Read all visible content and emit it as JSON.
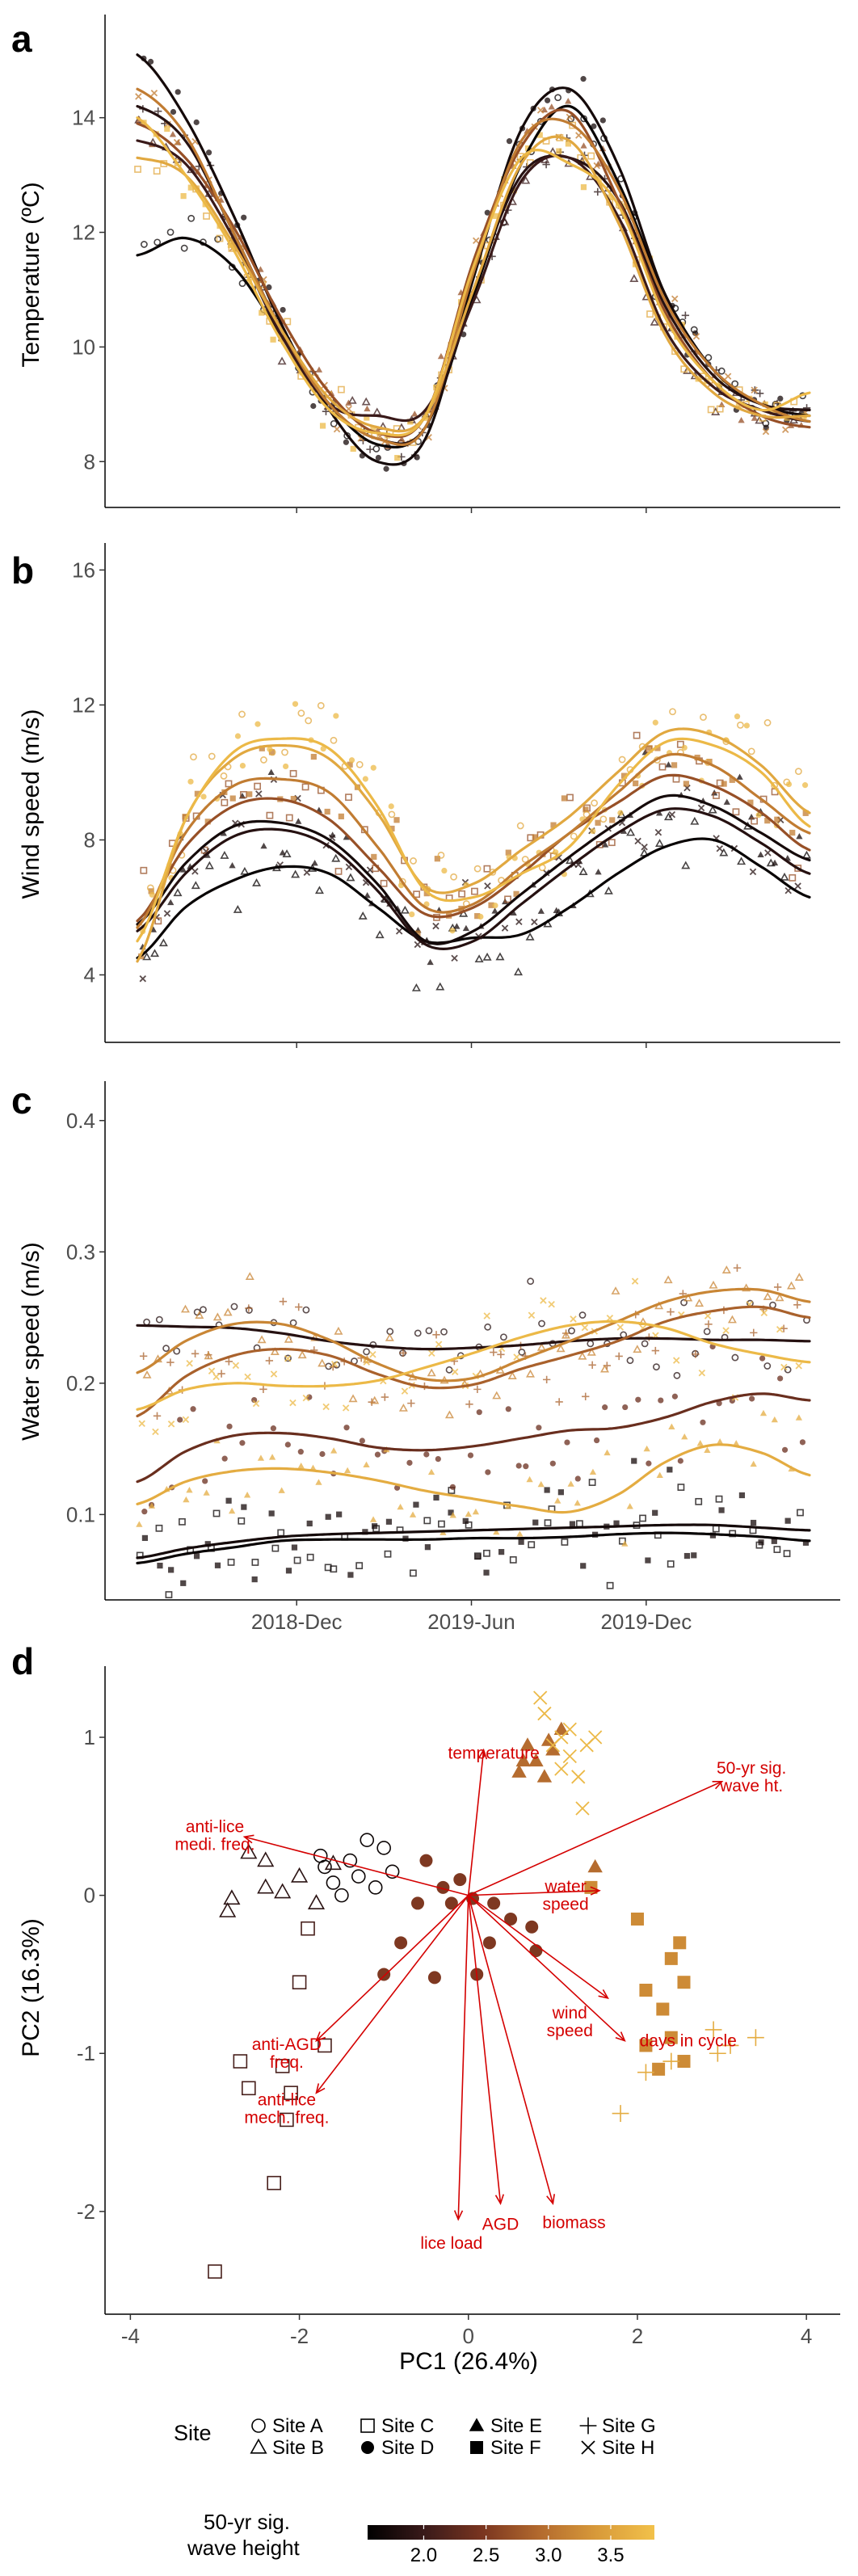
{
  "panel_letters": [
    "a",
    "b",
    "c",
    "d"
  ],
  "legend": {
    "site_title": "Site",
    "sites": [
      {
        "name": "Site A",
        "symbol": "circle-open"
      },
      {
        "name": "Site B",
        "symbol": "triangle-open"
      },
      {
        "name": "Site C",
        "symbol": "square-open"
      },
      {
        "name": "Site D",
        "symbol": "circle-filled"
      },
      {
        "name": "Site E",
        "symbol": "triangle-filled"
      },
      {
        "name": "Site F",
        "symbol": "square-filled"
      },
      {
        "name": "Site G",
        "symbol": "plus"
      },
      {
        "name": "Site H",
        "symbol": "cross"
      }
    ],
    "colorbar_title_line1": "50-yr sig.",
    "colorbar_title_line2": "wave height",
    "colorbar_ticks": [
      "2.0",
      "2.5",
      "3.0",
      "3.5"
    ],
    "colorbar_range": [
      1.55,
      3.85
    ],
    "colorbar_colors": [
      "#000000",
      "#3a1a1a",
      "#7a3520",
      "#b36a2e",
      "#d89a3a",
      "#f2c14a"
    ]
  },
  "chart_data": [
    {
      "type": "line",
      "panel": "a",
      "ylabel": "Temperature (ºC)",
      "xlabel": "",
      "yticks": [
        "8",
        "10",
        "12",
        "14"
      ],
      "ylim": [
        7.2,
        15.8
      ],
      "x_tick_labels": [
        "2018-Dec",
        "2019-Jun",
        "2019-Dec"
      ],
      "x_tick_positions": [
        0.237,
        0.497,
        0.757
      ],
      "series": [
        {
          "wave_height": 1.62,
          "values": [
            11.6,
            11.9,
            11.4,
            10.2,
            9.0,
            8.3,
            8.6,
            10.9,
            13.2,
            14.2,
            12.9,
            10.9,
            9.6,
            9.0,
            8.9
          ]
        },
        {
          "wave_height": 1.72,
          "values": [
            15.1,
            14.0,
            12.3,
            10.4,
            8.9,
            8.0,
            8.4,
            11.2,
            13.8,
            14.5,
            13.2,
            10.9,
            9.6,
            9.0,
            8.8
          ]
        },
        {
          "wave_height": 1.85,
          "values": [
            14.2,
            13.6,
            12.0,
            10.3,
            9.0,
            8.4,
            8.6,
            11.0,
            13.0,
            13.3,
            12.6,
            10.7,
            9.5,
            9.0,
            8.9
          ]
        },
        {
          "wave_height": 2.0,
          "values": [
            13.6,
            13.2,
            11.9,
            10.2,
            9.0,
            8.8,
            8.9,
            10.8,
            12.9,
            13.3,
            12.3,
            10.3,
            9.3,
            8.9,
            8.7
          ]
        },
        {
          "wave_height": 2.7,
          "values": [
            13.9,
            13.3,
            12.1,
            10.5,
            9.2,
            8.5,
            8.8,
            11.5,
            13.5,
            14.1,
            12.6,
            10.6,
            9.4,
            8.8,
            8.6
          ]
        },
        {
          "wave_height": 3.1,
          "values": [
            14.5,
            13.7,
            12.0,
            10.3,
            9.0,
            8.4,
            8.6,
            11.3,
            13.6,
            13.9,
            12.8,
            10.8,
            9.6,
            9.0,
            8.7
          ]
        },
        {
          "wave_height": 3.55,
          "values": [
            13.3,
            13.0,
            11.8,
            10.3,
            9.1,
            8.6,
            8.8,
            11.0,
            13.2,
            13.6,
            12.2,
            10.2,
            9.2,
            8.8,
            8.8
          ]
        },
        {
          "wave_height": 3.75,
          "values": [
            14.0,
            13.0,
            11.7,
            10.1,
            8.9,
            8.5,
            8.8,
            11.4,
            13.3,
            13.2,
            12.5,
            10.5,
            9.4,
            8.9,
            9.2
          ]
        }
      ]
    },
    {
      "type": "line",
      "panel": "b",
      "ylabel": "Wind speed (m/s)",
      "xlabel": "",
      "yticks": [
        "4",
        "8",
        "12",
        "16"
      ],
      "ylim": [
        2,
        16.8
      ],
      "x_tick_labels": [
        "2018-Dec",
        "2019-Jun",
        "2019-Dec"
      ],
      "x_tick_positions": [
        0.237,
        0.497,
        0.757
      ],
      "series": [
        {
          "wave_height": 1.62,
          "values": [
            4.5,
            6.0,
            6.8,
            7.2,
            7.0,
            6.0,
            5.0,
            5.1,
            5.2,
            6.0,
            7.0,
            7.8,
            8.0,
            7.2,
            6.3
          ]
        },
        {
          "wave_height": 1.72,
          "values": [
            5.5,
            7.3,
            8.4,
            8.5,
            8.0,
            6.7,
            5.0,
            5.3,
            6.4,
            7.5,
            8.5,
            9.3,
            9.0,
            8.2,
            7.4
          ]
        },
        {
          "wave_height": 1.85,
          "values": [
            5.3,
            7.0,
            8.1,
            8.3,
            7.8,
            6.5,
            4.9,
            5.0,
            6.1,
            7.2,
            8.2,
            8.9,
            8.7,
            7.9,
            7.0
          ]
        },
        {
          "wave_height": 2.7,
          "values": [
            5.6,
            7.8,
            9.0,
            9.2,
            8.6,
            7.2,
            5.8,
            6.0,
            7.0,
            8.2,
            9.1,
            9.9,
            9.6,
            8.8,
            7.7
          ]
        },
        {
          "wave_height": 3.1,
          "values": [
            5.4,
            8.2,
            9.6,
            9.8,
            9.4,
            7.8,
            6.0,
            6.1,
            7.2,
            8.2,
            9.4,
            10.5,
            10.2,
            9.2,
            8.2
          ]
        },
        {
          "wave_height": 3.55,
          "values": [
            4.4,
            8.6,
            10.4,
            10.8,
            10.4,
            8.8,
            6.6,
            6.7,
            7.7,
            8.7,
            10.0,
            11.2,
            11.1,
            10.2,
            8.8
          ]
        },
        {
          "wave_height": 3.75,
          "values": [
            5.0,
            8.6,
            10.6,
            11.0,
            10.7,
            9.0,
            6.5,
            6.3,
            7.0,
            7.8,
            9.6,
            10.9,
            10.8,
            10.0,
            8.4
          ]
        }
      ]
    },
    {
      "type": "line",
      "panel": "c",
      "ylabel": "Water speed (m/s)",
      "xlabel": "",
      "yticks": [
        "0.1",
        "0.2",
        "0.3",
        "0.4"
      ],
      "ylim": [
        0.035,
        0.43
      ],
      "x_tick_labels": [
        "2018-Dec",
        "2019-Jun",
        "2019-Dec"
      ],
      "x_tick_positions": [
        0.237,
        0.497,
        0.757
      ],
      "series": [
        {
          "wave_height": 1.62,
          "values": [
            0.063,
            0.07,
            0.075,
            0.08,
            0.081,
            0.081,
            0.081,
            0.082,
            0.082,
            0.083,
            0.085,
            0.086,
            0.085,
            0.083,
            0.08
          ]
        },
        {
          "wave_height": 1.72,
          "values": [
            0.067,
            0.074,
            0.079,
            0.083,
            0.085,
            0.086,
            0.087,
            0.088,
            0.089,
            0.09,
            0.091,
            0.092,
            0.092,
            0.09,
            0.088
          ]
        },
        {
          "wave_height": 1.85,
          "values": [
            0.244,
            0.243,
            0.242,
            0.238,
            0.232,
            0.228,
            0.226,
            0.227,
            0.229,
            0.232,
            0.234,
            0.234,
            0.233,
            0.233,
            0.232
          ]
        },
        {
          "wave_height": 2.35,
          "values": [
            0.125,
            0.148,
            0.16,
            0.162,
            0.158,
            0.151,
            0.149,
            0.152,
            0.158,
            0.164,
            0.166,
            0.174,
            0.186,
            0.192,
            0.187
          ]
        },
        {
          "wave_height": 2.85,
          "values": [
            0.175,
            0.205,
            0.221,
            0.226,
            0.221,
            0.207,
            0.197,
            0.199,
            0.211,
            0.221,
            0.232,
            0.247,
            0.255,
            0.258,
            0.25
          ]
        },
        {
          "wave_height": 3.2,
          "values": [
            0.208,
            0.232,
            0.245,
            0.245,
            0.233,
            0.215,
            0.203,
            0.204,
            0.218,
            0.232,
            0.247,
            0.262,
            0.27,
            0.271,
            0.262
          ]
        },
        {
          "wave_height": 3.6,
          "values": [
            0.108,
            0.125,
            0.133,
            0.135,
            0.132,
            0.126,
            0.118,
            0.112,
            0.106,
            0.102,
            0.115,
            0.14,
            0.153,
            0.147,
            0.13
          ]
        },
        {
          "wave_height": 3.75,
          "values": [
            0.18,
            0.195,
            0.2,
            0.198,
            0.198,
            0.202,
            0.212,
            0.223,
            0.235,
            0.244,
            0.247,
            0.242,
            0.23,
            0.222,
            0.216
          ]
        }
      ]
    },
    {
      "type": "scatter",
      "panel": "d",
      "xlabel": "PC1 (26.4%)",
      "ylabel": "PC2 (16.3%)",
      "xlim": [
        -4.3,
        4.4
      ],
      "ylim": [
        -2.65,
        1.45
      ],
      "xticks": [
        -4,
        -2,
        0,
        2,
        4
      ],
      "xtick_labels": [
        "-4",
        "-2",
        "0",
        "2",
        "4"
      ],
      "yticks": [
        -2,
        -1,
        0,
        1
      ],
      "ytick_labels": [
        "-2",
        "-1",
        "0",
        "1"
      ],
      "loadings": [
        {
          "label": "temperature",
          "x": 0.18,
          "y": 0.92,
          "lx": 0.3,
          "ly": 0.9
        },
        {
          "label": "50-yr sig.\nwave ht.",
          "x": 3.0,
          "y": 0.72,
          "lx": 3.35,
          "ly": 0.75
        },
        {
          "label": "anti-lice\nmedi. freq.",
          "x": -2.65,
          "y": 0.37,
          "lx": -3.0,
          "ly": 0.38
        },
        {
          "label": "water\nspeed",
          "x": 1.55,
          "y": 0.03,
          "lx": 1.15,
          "ly": 0.0
        },
        {
          "label": "wind\nspeed",
          "x": 1.65,
          "y": -0.65,
          "lx": 1.2,
          "ly": -0.8
        },
        {
          "label": "days in cycle",
          "x": 1.85,
          "y": -0.92,
          "lx": 2.6,
          "ly": -0.92
        },
        {
          "label": "anti-AGD\nfreq.",
          "x": -1.8,
          "y": -0.92,
          "lx": -2.15,
          "ly": -1.0
        },
        {
          "label": "anti-lice\nmech. freq.",
          "x": -1.8,
          "y": -1.25,
          "lx": -2.15,
          "ly": -1.35
        },
        {
          "label": "lice load",
          "x": -0.12,
          "y": -2.05,
          "lx": -0.2,
          "ly": -2.2
        },
        {
          "label": "AGD",
          "x": 0.38,
          "y": -1.95,
          "lx": 0.38,
          "ly": -2.08
        },
        {
          "label": "biomass",
          "x": 1.0,
          "y": -1.95,
          "lx": 1.25,
          "ly": -2.07
        }
      ],
      "points": [
        {
          "site": "Site A",
          "wave_height": 1.65,
          "coords": [
            [
              -1.6,
              0.08
            ],
            [
              -1.4,
              0.22
            ],
            [
              -1.2,
              0.35
            ],
            [
              -1.0,
              0.3
            ],
            [
              -1.5,
              0.0
            ],
            [
              -1.7,
              0.18
            ],
            [
              -1.3,
              0.12
            ],
            [
              -0.9,
              0.15
            ],
            [
              -1.1,
              0.05
            ],
            [
              -1.75,
              0.25
            ]
          ]
        },
        {
          "site": "Site B",
          "wave_height": 1.9,
          "coords": [
            [
              -2.8,
              -0.02
            ],
            [
              -2.6,
              0.27
            ],
            [
              -2.4,
              0.22
            ],
            [
              -2.2,
              0.02
            ],
            [
              -2.0,
              0.12
            ],
            [
              -1.8,
              -0.05
            ],
            [
              -2.85,
              -0.1
            ],
            [
              -1.6,
              0.2
            ],
            [
              -2.4,
              0.05
            ]
          ]
        },
        {
          "site": "Site C",
          "wave_height": 2.1,
          "coords": [
            [
              -3.0,
              -2.38
            ],
            [
              -2.3,
              -1.82
            ],
            [
              -2.15,
              -1.42
            ],
            [
              -2.6,
              -1.22
            ],
            [
              -2.7,
              -1.05
            ],
            [
              -2.2,
              -1.08
            ],
            [
              -1.7,
              -0.95
            ],
            [
              -2.0,
              -0.55
            ],
            [
              -1.9,
              -0.21
            ],
            [
              -2.1,
              -1.25
            ]
          ]
        },
        {
          "site": "Site D",
          "wave_height": 2.5,
          "coords": [
            [
              -0.5,
              0.22
            ],
            [
              -0.3,
              0.05
            ],
            [
              -0.2,
              -0.05
            ],
            [
              0.05,
              -0.02
            ],
            [
              0.3,
              -0.05
            ],
            [
              0.5,
              -0.15
            ],
            [
              0.75,
              -0.2
            ],
            [
              0.8,
              -0.35
            ],
            [
              0.1,
              -0.5
            ],
            [
              -0.4,
              -0.52
            ],
            [
              -0.6,
              -0.05
            ],
            [
              -0.8,
              -0.3
            ],
            [
              -1.0,
              -0.5
            ],
            [
              -0.1,
              0.1
            ],
            [
              0.25,
              -0.3
            ]
          ]
        },
        {
          "site": "Site E",
          "wave_height": 2.95,
          "coords": [
            [
              0.6,
              0.78
            ],
            [
              0.8,
              0.85
            ],
            [
              1.0,
              0.92
            ],
            [
              0.7,
              0.95
            ],
            [
              0.9,
              0.75
            ],
            [
              1.1,
              1.05
            ],
            [
              0.65,
              0.85
            ],
            [
              1.5,
              0.18
            ],
            [
              0.95,
              0.98
            ]
          ]
        },
        {
          "site": "Site F",
          "wave_height": 3.25,
          "coords": [
            [
              1.45,
              0.05
            ],
            [
              2.0,
              -0.15
            ],
            [
              2.1,
              -0.6
            ],
            [
              2.3,
              -0.72
            ],
            [
              2.5,
              -0.3
            ],
            [
              2.1,
              -0.95
            ],
            [
              2.4,
              -0.9
            ],
            [
              2.55,
              -0.55
            ],
            [
              2.25,
              -1.1
            ],
            [
              2.55,
              -1.05
            ],
            [
              2.4,
              -0.4
            ]
          ]
        },
        {
          "site": "Site G",
          "wave_height": 3.6,
          "coords": [
            [
              1.8,
              -1.38
            ],
            [
              2.1,
              -1.12
            ],
            [
              2.4,
              -1.05
            ],
            [
              2.9,
              -0.85
            ],
            [
              3.1,
              -0.95
            ],
            [
              3.4,
              -0.9
            ],
            [
              2.95,
              -1.0
            ]
          ]
        },
        {
          "site": "Site H",
          "wave_height": 3.75,
          "coords": [
            [
              0.85,
              1.25
            ],
            [
              0.9,
              1.15
            ],
            [
              1.1,
              1.0
            ],
            [
              1.2,
              0.88
            ],
            [
              1.3,
              0.75
            ],
            [
              1.0,
              0.95
            ],
            [
              1.2,
              1.05
            ],
            [
              1.1,
              0.8
            ],
            [
              1.4,
              0.95
            ],
            [
              1.5,
              1.0
            ],
            [
              1.35,
              0.55
            ]
          ]
        }
      ]
    }
  ]
}
